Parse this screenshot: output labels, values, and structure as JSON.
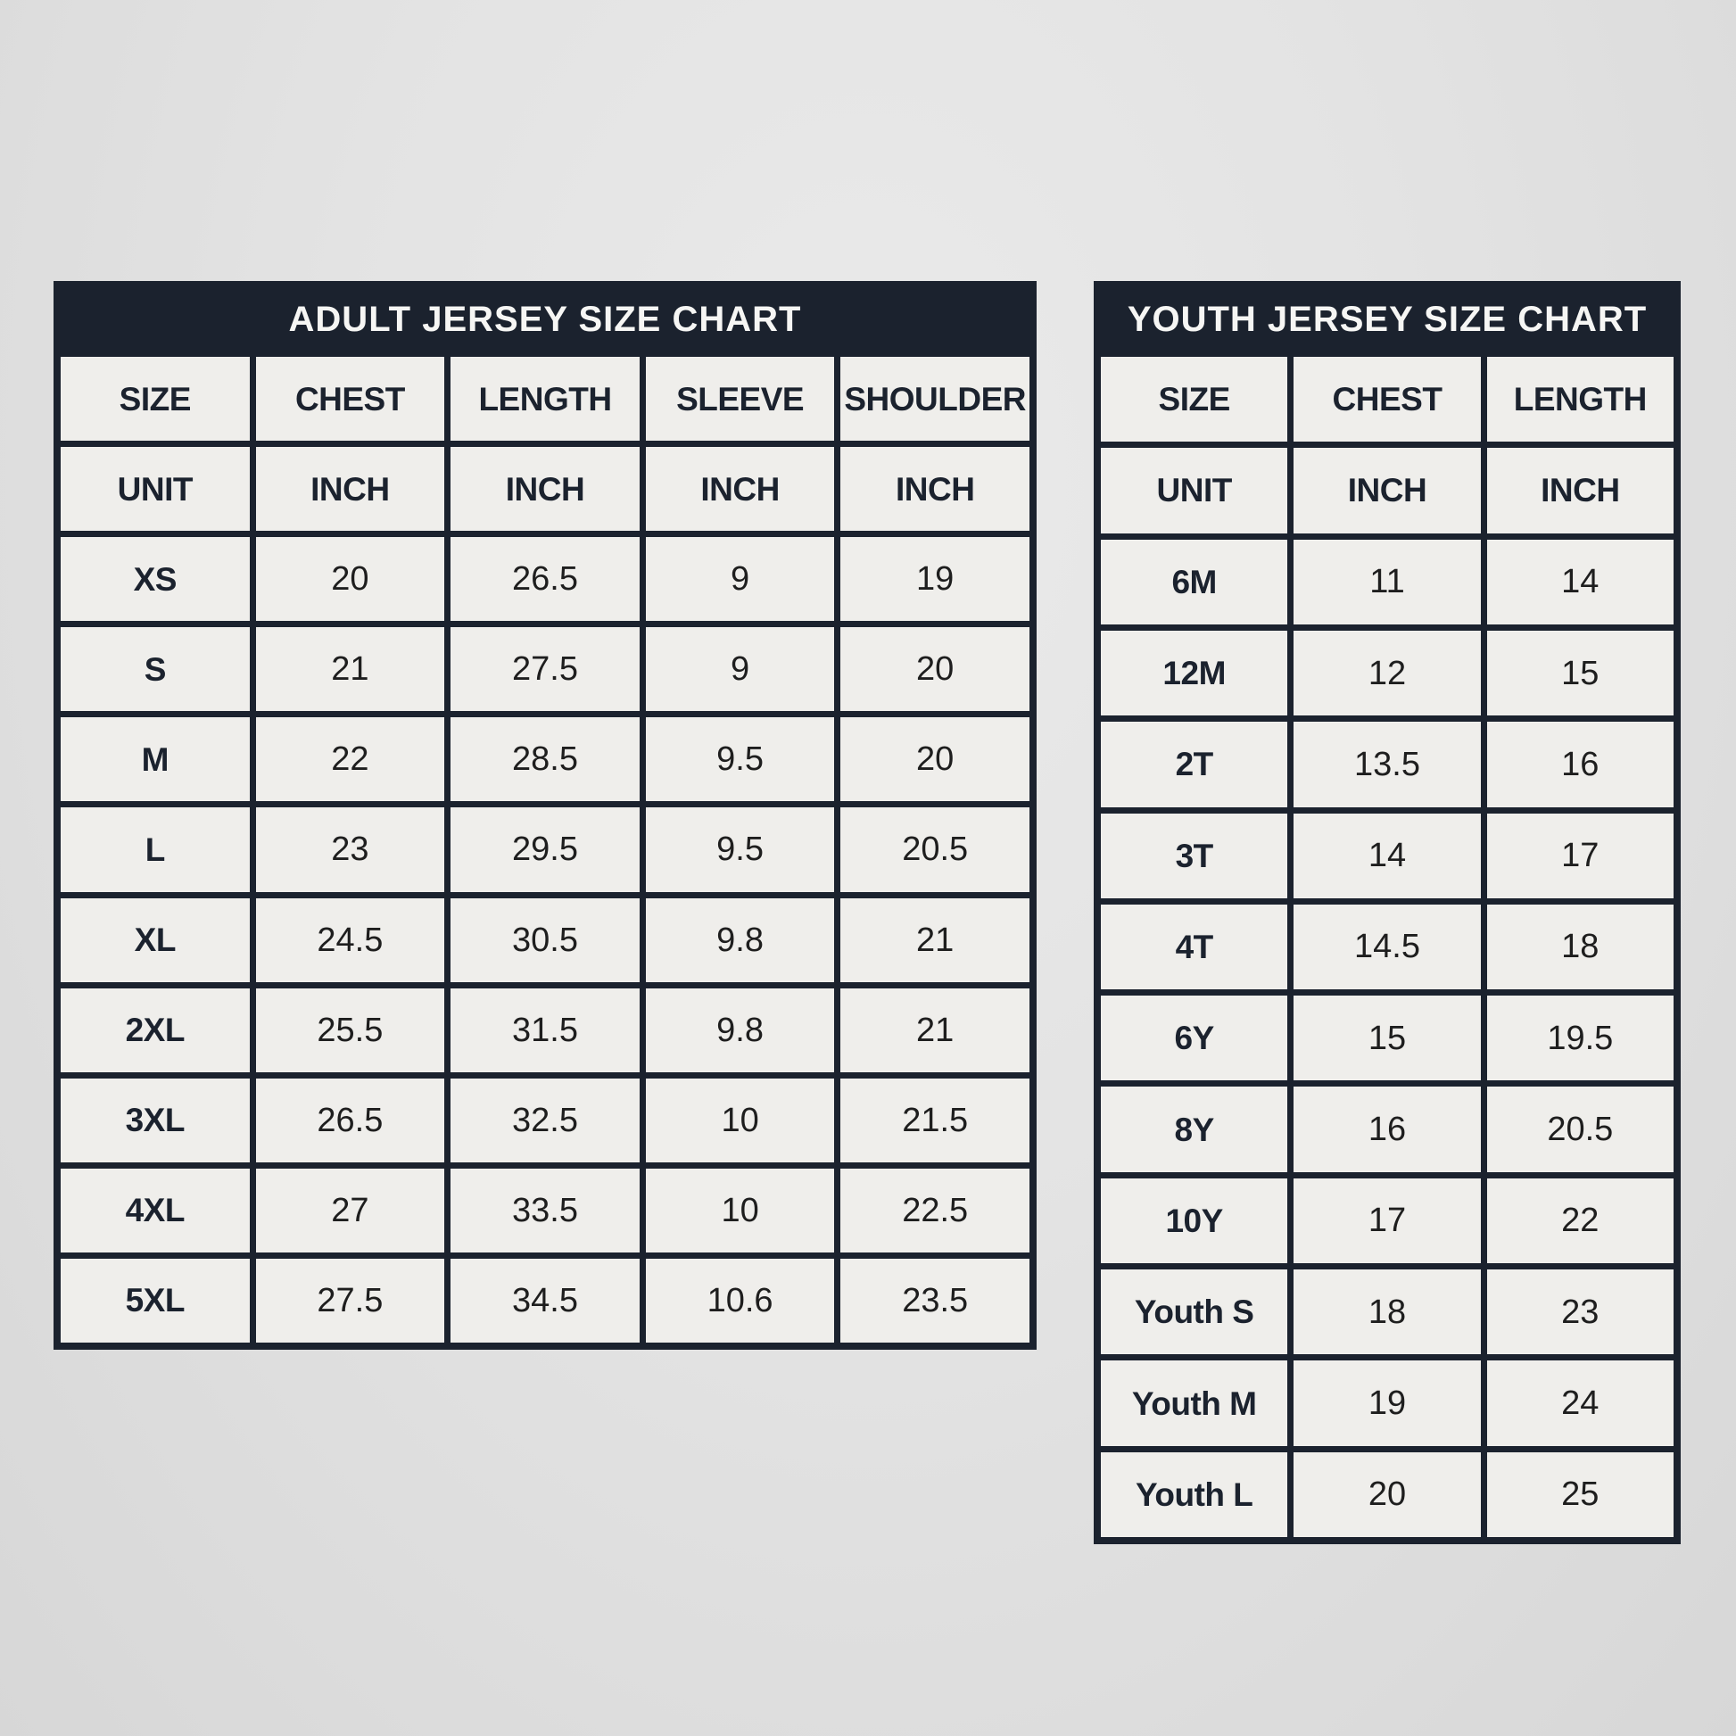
{
  "colors": {
    "navy": "#1b222e",
    "cell_background": "#efeeeb",
    "page_background": "#e3e3e3",
    "title_text": "#f6f6f4",
    "value_text": "#1e1e1e"
  },
  "chart_data": [
    {
      "type": "table",
      "title": "ADULT JERSEY SIZE CHART",
      "columns": [
        "SIZE",
        "CHEST",
        "LENGTH",
        "SLEEVE",
        "SHOULDER"
      ],
      "unit_row": [
        "UNIT",
        "INCH",
        "INCH",
        "INCH",
        "INCH"
      ],
      "rows": [
        [
          "XS",
          "20",
          "26.5",
          "9",
          "19"
        ],
        [
          "S",
          "21",
          "27.5",
          "9",
          "20"
        ],
        [
          "M",
          "22",
          "28.5",
          "9.5",
          "20"
        ],
        [
          "L",
          "23",
          "29.5",
          "9.5",
          "20.5"
        ],
        [
          "XL",
          "24.5",
          "30.5",
          "9.8",
          "21"
        ],
        [
          "2XL",
          "25.5",
          "31.5",
          "9.8",
          "21"
        ],
        [
          "3XL",
          "26.5",
          "32.5",
          "10",
          "21.5"
        ],
        [
          "4XL",
          "27",
          "33.5",
          "10",
          "22.5"
        ],
        [
          "5XL",
          "27.5",
          "34.5",
          "10.6",
          "23.5"
        ]
      ]
    },
    {
      "type": "table",
      "title": "YOUTH JERSEY SIZE CHART",
      "columns": [
        "SIZE",
        "CHEST",
        "LENGTH"
      ],
      "unit_row": [
        "UNIT",
        "INCH",
        "INCH"
      ],
      "rows": [
        [
          "6M",
          "11",
          "14"
        ],
        [
          "12M",
          "12",
          "15"
        ],
        [
          "2T",
          "13.5",
          "16"
        ],
        [
          "3T",
          "14",
          "17"
        ],
        [
          "4T",
          "14.5",
          "18"
        ],
        [
          "6Y",
          "15",
          "19.5"
        ],
        [
          "8Y",
          "16",
          "20.5"
        ],
        [
          "10Y",
          "17",
          "22"
        ],
        [
          "Youth S",
          "18",
          "23"
        ],
        [
          "Youth M",
          "19",
          "24"
        ],
        [
          "Youth L",
          "20",
          "25"
        ]
      ]
    }
  ]
}
